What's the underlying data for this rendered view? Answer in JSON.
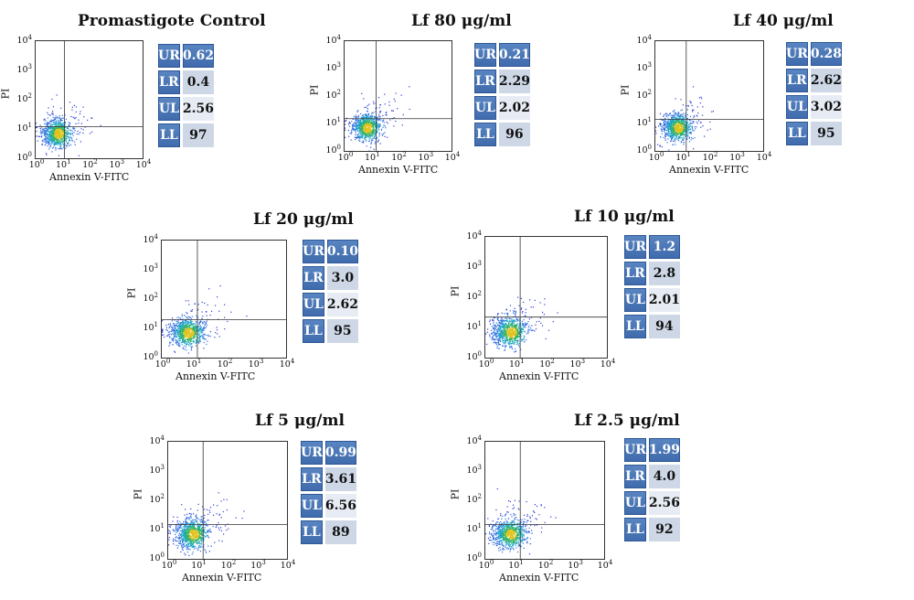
{
  "chart_data": [
    {
      "type": "scatter",
      "title": "Promastigote Control",
      "xlabel": "Annexin V-FITC",
      "ylabel": "PI",
      "xticks": [
        "10^0",
        "10^1",
        "10^2",
        "10^3",
        "10^4"
      ],
      "yticks": [
        "10^0",
        "10^1",
        "10^2",
        "10^3",
        "10^4"
      ],
      "xlim": [
        1,
        10000
      ],
      "ylim": [
        1,
        10000
      ],
      "gate": {
        "x": 12,
        "y": 12
      },
      "quadrants": [
        {
          "label": "UR",
          "value": "0.62"
        },
        {
          "label": "LR",
          "value": "0.4"
        },
        {
          "label": "UL",
          "value": "2.56"
        },
        {
          "label": "LL",
          "value": "97"
        }
      ]
    },
    {
      "type": "scatter",
      "title": "Lf 80 μg/ml",
      "xlabel": "Annexin V-FITC",
      "ylabel": "PI",
      "xticks": [
        "10^0",
        "10^1",
        "10^2",
        "10^3",
        "10^4"
      ],
      "yticks": [
        "10^0",
        "10^1",
        "10^2",
        "10^3",
        "10^4"
      ],
      "xlim": [
        1,
        10000
      ],
      "ylim": [
        1,
        10000
      ],
      "gate": {
        "x": 15,
        "y": 15
      },
      "quadrants": [
        {
          "label": "UR",
          "value": "0.21"
        },
        {
          "label": "LR",
          "value": "2.29"
        },
        {
          "label": "UL",
          "value": "2.02"
        },
        {
          "label": "LL",
          "value": "96"
        }
      ]
    },
    {
      "type": "scatter",
      "title": "Lf 40 μg/ml",
      "xlabel": "Annexin V-FITC",
      "ylabel": "PI",
      "xticks": [
        "10^0",
        "10^1",
        "10^2",
        "10^3",
        "10^4"
      ],
      "yticks": [
        "10^0",
        "10^1",
        "10^2",
        "10^3",
        "10^4"
      ],
      "xlim": [
        1,
        10000
      ],
      "ylim": [
        1,
        10000
      ],
      "gate": {
        "x": 14,
        "y": 14
      },
      "quadrants": [
        {
          "label": "UR",
          "value": "0.28"
        },
        {
          "label": "LR",
          "value": "2.62"
        },
        {
          "label": "UL",
          "value": "3.02"
        },
        {
          "label": "LL",
          "value": "95"
        }
      ]
    },
    {
      "type": "scatter",
      "title": "Lf 20 μg/ml",
      "xlabel": "Annexin V-FITC",
      "ylabel": "PI",
      "xticks": [
        "10^0",
        "10^1",
        "10^2",
        "10^3",
        "10^4"
      ],
      "yticks": [
        "10^0",
        "10^1",
        "10^2",
        "10^3",
        "10^4"
      ],
      "xlim": [
        1,
        10000
      ],
      "ylim": [
        1,
        10000
      ],
      "gate": {
        "x": 14,
        "y": 20
      },
      "quadrants": [
        {
          "label": "UR",
          "value": "0.10"
        },
        {
          "label": "LR",
          "value": "3.0"
        },
        {
          "label": "UL",
          "value": "2.62"
        },
        {
          "label": "LL",
          "value": "95"
        }
      ]
    },
    {
      "type": "scatter",
      "title": "Lf 10 μg/ml",
      "xlabel": "Annexin V-FITC",
      "ylabel": "PI",
      "xticks": [
        "10^0",
        "10^1",
        "10^2",
        "10^3",
        "10^4"
      ],
      "yticks": [
        "10^0",
        "10^1",
        "10^2",
        "10^3",
        "10^4"
      ],
      "xlim": [
        1,
        10000
      ],
      "ylim": [
        1,
        10000
      ],
      "gate": {
        "x": 14,
        "y": 22
      },
      "quadrants": [
        {
          "label": "UR",
          "value": "1.2"
        },
        {
          "label": "LR",
          "value": "2.8"
        },
        {
          "label": "UL",
          "value": "2.01"
        },
        {
          "label": "LL",
          "value": "94"
        }
      ]
    },
    {
      "type": "scatter",
      "title": "Lf 5 μg/ml",
      "xlabel": "Annexin V-FITC",
      "ylabel": "PI",
      "xticks": [
        "10^0",
        "10^1",
        "10^2",
        "10^3",
        "10^4"
      ],
      "yticks": [
        "10^0",
        "10^1",
        "10^2",
        "10^3",
        "10^4"
      ],
      "xlim": [
        1,
        10000
      ],
      "ylim": [
        1,
        10000
      ],
      "gate": {
        "x": 15,
        "y": 15
      },
      "quadrants": [
        {
          "label": "UR",
          "value": "0.99"
        },
        {
          "label": "LR",
          "value": "3.61"
        },
        {
          "label": "UL",
          "value": "6.56"
        },
        {
          "label": "LL",
          "value": "89"
        }
      ]
    },
    {
      "type": "scatter",
      "title": "Lf 2.5 μg/ml",
      "xlabel": "Annexin V-FITC",
      "ylabel": "PI",
      "xticks": [
        "10^0",
        "10^1",
        "10^2",
        "10^3",
        "10^4"
      ],
      "yticks": [
        "10^0",
        "10^1",
        "10^2",
        "10^3",
        "10^4"
      ],
      "xlim": [
        1,
        10000
      ],
      "ylim": [
        1,
        10000
      ],
      "gate": {
        "x": 15,
        "y": 15
      },
      "quadrants": [
        {
          "label": "UR",
          "value": "1.99"
        },
        {
          "label": "LR",
          "value": "4.0"
        },
        {
          "label": "UL",
          "value": "2.56"
        },
        {
          "label": "LL",
          "value": "92"
        }
      ]
    }
  ]
}
